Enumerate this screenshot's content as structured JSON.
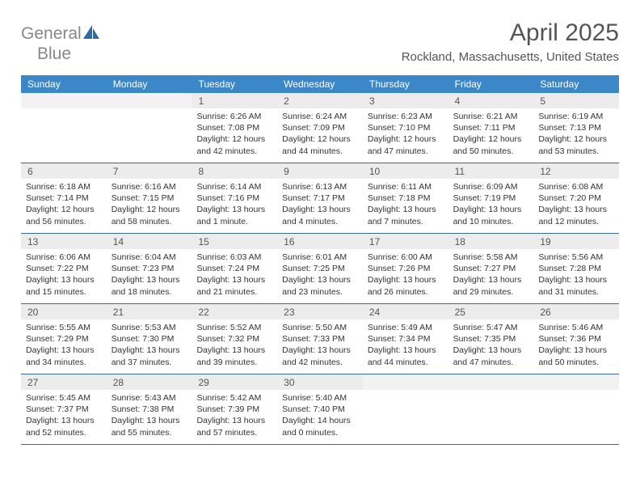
{
  "logo": {
    "text1": "General",
    "text2": "Blue",
    "icon_color": "#2f6aa8"
  },
  "title": "April 2025",
  "subtitle": "Rockland, Massachusetts, United States",
  "header_bg": "#3c87c7",
  "header_fg": "#ffffff",
  "daynum_bg": "#ececec",
  "border_color": "#3c6a97",
  "day_names": [
    "Sunday",
    "Monday",
    "Tuesday",
    "Wednesday",
    "Thursday",
    "Friday",
    "Saturday"
  ],
  "weeks": [
    [
      null,
      null,
      {
        "d": "1",
        "sr": "Sunrise: 6:26 AM",
        "ss": "Sunset: 7:08 PM",
        "dl1": "Daylight: 12 hours",
        "dl2": "and 42 minutes."
      },
      {
        "d": "2",
        "sr": "Sunrise: 6:24 AM",
        "ss": "Sunset: 7:09 PM",
        "dl1": "Daylight: 12 hours",
        "dl2": "and 44 minutes."
      },
      {
        "d": "3",
        "sr": "Sunrise: 6:23 AM",
        "ss": "Sunset: 7:10 PM",
        "dl1": "Daylight: 12 hours",
        "dl2": "and 47 minutes."
      },
      {
        "d": "4",
        "sr": "Sunrise: 6:21 AM",
        "ss": "Sunset: 7:11 PM",
        "dl1": "Daylight: 12 hours",
        "dl2": "and 50 minutes."
      },
      {
        "d": "5",
        "sr": "Sunrise: 6:19 AM",
        "ss": "Sunset: 7:13 PM",
        "dl1": "Daylight: 12 hours",
        "dl2": "and 53 minutes."
      }
    ],
    [
      {
        "d": "6",
        "sr": "Sunrise: 6:18 AM",
        "ss": "Sunset: 7:14 PM",
        "dl1": "Daylight: 12 hours",
        "dl2": "and 56 minutes."
      },
      {
        "d": "7",
        "sr": "Sunrise: 6:16 AM",
        "ss": "Sunset: 7:15 PM",
        "dl1": "Daylight: 12 hours",
        "dl2": "and 58 minutes."
      },
      {
        "d": "8",
        "sr": "Sunrise: 6:14 AM",
        "ss": "Sunset: 7:16 PM",
        "dl1": "Daylight: 13 hours",
        "dl2": "and 1 minute."
      },
      {
        "d": "9",
        "sr": "Sunrise: 6:13 AM",
        "ss": "Sunset: 7:17 PM",
        "dl1": "Daylight: 13 hours",
        "dl2": "and 4 minutes."
      },
      {
        "d": "10",
        "sr": "Sunrise: 6:11 AM",
        "ss": "Sunset: 7:18 PM",
        "dl1": "Daylight: 13 hours",
        "dl2": "and 7 minutes."
      },
      {
        "d": "11",
        "sr": "Sunrise: 6:09 AM",
        "ss": "Sunset: 7:19 PM",
        "dl1": "Daylight: 13 hours",
        "dl2": "and 10 minutes."
      },
      {
        "d": "12",
        "sr": "Sunrise: 6:08 AM",
        "ss": "Sunset: 7:20 PM",
        "dl1": "Daylight: 13 hours",
        "dl2": "and 12 minutes."
      }
    ],
    [
      {
        "d": "13",
        "sr": "Sunrise: 6:06 AM",
        "ss": "Sunset: 7:22 PM",
        "dl1": "Daylight: 13 hours",
        "dl2": "and 15 minutes."
      },
      {
        "d": "14",
        "sr": "Sunrise: 6:04 AM",
        "ss": "Sunset: 7:23 PM",
        "dl1": "Daylight: 13 hours",
        "dl2": "and 18 minutes."
      },
      {
        "d": "15",
        "sr": "Sunrise: 6:03 AM",
        "ss": "Sunset: 7:24 PM",
        "dl1": "Daylight: 13 hours",
        "dl2": "and 21 minutes."
      },
      {
        "d": "16",
        "sr": "Sunrise: 6:01 AM",
        "ss": "Sunset: 7:25 PM",
        "dl1": "Daylight: 13 hours",
        "dl2": "and 23 minutes."
      },
      {
        "d": "17",
        "sr": "Sunrise: 6:00 AM",
        "ss": "Sunset: 7:26 PM",
        "dl1": "Daylight: 13 hours",
        "dl2": "and 26 minutes."
      },
      {
        "d": "18",
        "sr": "Sunrise: 5:58 AM",
        "ss": "Sunset: 7:27 PM",
        "dl1": "Daylight: 13 hours",
        "dl2": "and 29 minutes."
      },
      {
        "d": "19",
        "sr": "Sunrise: 5:56 AM",
        "ss": "Sunset: 7:28 PM",
        "dl1": "Daylight: 13 hours",
        "dl2": "and 31 minutes."
      }
    ],
    [
      {
        "d": "20",
        "sr": "Sunrise: 5:55 AM",
        "ss": "Sunset: 7:29 PM",
        "dl1": "Daylight: 13 hours",
        "dl2": "and 34 minutes."
      },
      {
        "d": "21",
        "sr": "Sunrise: 5:53 AM",
        "ss": "Sunset: 7:30 PM",
        "dl1": "Daylight: 13 hours",
        "dl2": "and 37 minutes."
      },
      {
        "d": "22",
        "sr": "Sunrise: 5:52 AM",
        "ss": "Sunset: 7:32 PM",
        "dl1": "Daylight: 13 hours",
        "dl2": "and 39 minutes."
      },
      {
        "d": "23",
        "sr": "Sunrise: 5:50 AM",
        "ss": "Sunset: 7:33 PM",
        "dl1": "Daylight: 13 hours",
        "dl2": "and 42 minutes."
      },
      {
        "d": "24",
        "sr": "Sunrise: 5:49 AM",
        "ss": "Sunset: 7:34 PM",
        "dl1": "Daylight: 13 hours",
        "dl2": "and 44 minutes."
      },
      {
        "d": "25",
        "sr": "Sunrise: 5:47 AM",
        "ss": "Sunset: 7:35 PM",
        "dl1": "Daylight: 13 hours",
        "dl2": "and 47 minutes."
      },
      {
        "d": "26",
        "sr": "Sunrise: 5:46 AM",
        "ss": "Sunset: 7:36 PM",
        "dl1": "Daylight: 13 hours",
        "dl2": "and 50 minutes."
      }
    ],
    [
      {
        "d": "27",
        "sr": "Sunrise: 5:45 AM",
        "ss": "Sunset: 7:37 PM",
        "dl1": "Daylight: 13 hours",
        "dl2": "and 52 minutes."
      },
      {
        "d": "28",
        "sr": "Sunrise: 5:43 AM",
        "ss": "Sunset: 7:38 PM",
        "dl1": "Daylight: 13 hours",
        "dl2": "and 55 minutes."
      },
      {
        "d": "29",
        "sr": "Sunrise: 5:42 AM",
        "ss": "Sunset: 7:39 PM",
        "dl1": "Daylight: 13 hours",
        "dl2": "and 57 minutes."
      },
      {
        "d": "30",
        "sr": "Sunrise: 5:40 AM",
        "ss": "Sunset: 7:40 PM",
        "dl1": "Daylight: 14 hours",
        "dl2": "and 0 minutes."
      },
      null,
      null,
      null
    ]
  ]
}
